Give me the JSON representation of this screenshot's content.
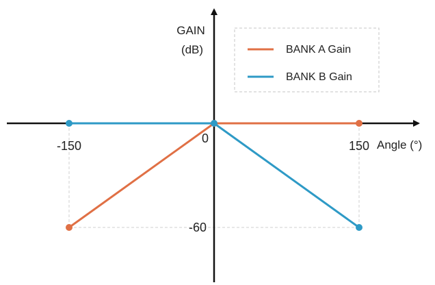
{
  "chart_data": {
    "type": "line",
    "ylabel_line1": "GAIN",
    "ylabel_line2": "(dB)",
    "xlabel": "Angle (°)",
    "xlim": [
      -150,
      150
    ],
    "ylim": [
      -60,
      0
    ],
    "x_ticks": [
      {
        "value": -150,
        "label": "-150"
      },
      {
        "value": 0,
        "label": "0"
      },
      {
        "value": 150,
        "label": "150"
      }
    ],
    "y_ticks": [
      {
        "value": -60,
        "label": "-60"
      }
    ],
    "legend_position": "top-right",
    "series": [
      {
        "name": "BANK A Gain",
        "color": "#e07045",
        "points": [
          {
            "x": -150,
            "y": -60
          },
          {
            "x": 0,
            "y": 0
          },
          {
            "x": 150,
            "y": 0
          }
        ]
      },
      {
        "name": "BANK B Gain",
        "color": "#2e9ac6",
        "points": [
          {
            "x": -150,
            "y": 0
          },
          {
            "x": 0,
            "y": 0
          },
          {
            "x": 150,
            "y": -60
          }
        ]
      }
    ],
    "grid": false,
    "axis_color": "#111111",
    "guide_color": "#cfcfcf"
  }
}
